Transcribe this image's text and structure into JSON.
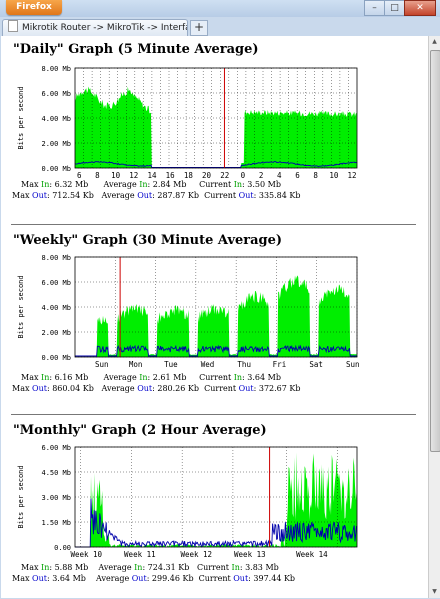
{
  "browser": {
    "app_button": "Firefox",
    "tabs": [
      {
        "label": "Mikrotik Router -> MikroTik -> Interface..."
      }
    ],
    "new_tab": "+",
    "window_buttons": [
      "–",
      "□",
      "✕"
    ]
  },
  "colors": {
    "in": "#00ee00",
    "out": "#0000aa",
    "now_marker": "#cc0000"
  },
  "graphs": [
    {
      "title": "\"Daily\" Graph (5 Minute Average)",
      "ylabel": "Bits per second",
      "y_ticks": [
        "0.00 Mb",
        "2.00 Mb",
        "4.00 Mb",
        "6.00 Mb",
        "8.00 Mb"
      ],
      "x_ticks": [
        "6",
        "8",
        "10",
        "12",
        "14",
        "16",
        "18",
        "20",
        "22",
        "0",
        "2",
        "4",
        "6",
        "8",
        "10",
        "12"
      ],
      "stats_line1": {
        "max_in_label": "Max",
        "max_in_word": "In",
        "max_in_value": ": 6.32 Mb",
        "avg_in_label": "Average",
        "avg_in_word": "In",
        "avg_in_value": ": 2.84 Mb",
        "cur_in_label": "Current",
        "cur_in_word": "In",
        "cur_in_value": ": 3.50 Mb"
      },
      "stats_line2": {
        "max_out_label": "Max",
        "max_out_word": "Out",
        "max_out_value": ": 712.54 Kb",
        "avg_out_label": "Average",
        "avg_out_word": "Out",
        "avg_out_value": ": 287.87 Kb",
        "cur_out_label": "Current",
        "cur_out_word": "Out",
        "cur_out_value": ": 335.84 Kb"
      }
    },
    {
      "title": "\"Weekly\" Graph (30 Minute Average)",
      "ylabel": "Bits per second",
      "y_ticks": [
        "0.00 Mb",
        "2.00 Mb",
        "4.00 Mb",
        "6.00 Mb",
        "8.00 Mb"
      ],
      "x_ticks": [
        "Sun",
        "Mon",
        "Tue",
        "Wed",
        "Thu",
        "Fri",
        "Sat",
        "Sun"
      ],
      "stats_line1": {
        "max_in_label": "Max",
        "max_in_word": "In",
        "max_in_value": ": 6.16 Mb",
        "avg_in_label": "Average",
        "avg_in_word": "In",
        "avg_in_value": ": 2.61 Mb",
        "cur_in_label": "Current",
        "cur_in_word": "In",
        "cur_in_value": ": 3.64 Mb"
      },
      "stats_line2": {
        "max_out_label": "Max",
        "max_out_word": "Out",
        "max_out_value": ": 860.04 Kb",
        "avg_out_label": "Average",
        "avg_out_word": "Out",
        "avg_out_value": ": 280.26 Kb",
        "cur_out_label": "Current",
        "cur_out_word": "Out",
        "cur_out_value": ": 372.67 Kb"
      }
    },
    {
      "title": "\"Monthly\" Graph (2 Hour Average)",
      "ylabel": "Bits per second",
      "y_ticks": [
        "0.00",
        "1.50 Mb",
        "3.00 Mb",
        "4.50 Mb",
        "6.00 Mb"
      ],
      "x_ticks": [
        "Week 10",
        "Week 11",
        "Week 12",
        "Week 13",
        "Week 14"
      ],
      "stats_line1": {
        "max_in_label": "Max",
        "max_in_word": "In",
        "max_in_value": ": 5.88 Mb",
        "avg_in_label": "Average",
        "avg_in_word": "In",
        "avg_in_value": ": 724.31 Kb",
        "cur_in_label": "Current",
        "cur_in_word": "In",
        "cur_in_value": ": 3.83 Mb"
      },
      "stats_line2": {
        "max_out_label": "Max",
        "max_out_word": "Out",
        "max_out_value": ": 3.64 Mb",
        "avg_out_label": "Average",
        "avg_out_word": "Out",
        "avg_out_value": ": 299.46 Kb",
        "cur_out_label": "Current",
        "cur_out_word": "Out",
        "cur_out_value": ": 397.44 Kb"
      }
    }
  ]
}
